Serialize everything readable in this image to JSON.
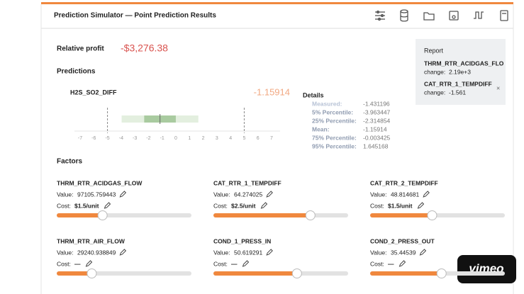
{
  "header": {
    "title": "Prediction Simulator — Point Prediction Results"
  },
  "relative_profit": {
    "label": "Relative profit",
    "value": "-$3,276.38"
  },
  "predictions": {
    "title": "Predictions",
    "target": "H2S_SO2_DIFF",
    "value": "-1.15914",
    "axis_ticks": [
      -7,
      -6,
      -5,
      -4,
      -3,
      -2,
      -1,
      0,
      1,
      2,
      3,
      4,
      5,
      6,
      7
    ],
    "limits": [
      -5,
      5
    ],
    "details": {
      "title": "Details",
      "rows": [
        {
          "label": "Measured:",
          "value": -1.431196
        },
        {
          "label": "5% Percentile:",
          "value": -3.963447
        },
        {
          "label": "25% Percentile:",
          "value": -2.314854
        },
        {
          "label": "Mean:",
          "value": -1.15914
        },
        {
          "label": "75% Percentile:",
          "value": -0.003425
        },
        {
          "label": "95% Percentile:",
          "value": 1.645168
        }
      ]
    }
  },
  "report": {
    "title": "Report",
    "close": "×",
    "items": [
      {
        "name": "THRM_RTR_ACIDGAS_FLO",
        "change_label": "change:",
        "change": "2.19e+3"
      },
      {
        "name": "CAT_RTR_1_TEMPDIFF",
        "change_label": "change:",
        "change": "-1.561"
      }
    ]
  },
  "factors": {
    "title": "Factors",
    "items": [
      {
        "name": "THRM_RTR_ACIDGAS_FLOW",
        "value_label": "Value:",
        "value": "97105.759443",
        "cost_label": "Cost:",
        "cost": "$1.5/unit",
        "slider": 0.34
      },
      {
        "name": "CAT_RTR_1_TEMPDIFF",
        "value_label": "Value:",
        "value": "64.274025",
        "cost_label": "Cost:",
        "cost": "$2.5/unit",
        "slider": 0.72
      },
      {
        "name": "CAT_RTR_2_TEMPDIFF",
        "value_label": "Value:",
        "value": "48.814681",
        "cost_label": "Cost:",
        "cost": "$1.5/unit",
        "slider": 0.46
      },
      {
        "name": "THRM_RTR_AIR_FLOW",
        "value_label": "Value:",
        "value": "29240.938849",
        "cost_label": "Cost:",
        "cost": "—",
        "slider": 0.26
      },
      {
        "name": "COND_1_PRESS_IN",
        "value_label": "Value:",
        "value": "50.619291",
        "cost_label": "Cost:",
        "cost": "—",
        "slider": 0.62
      },
      {
        "name": "COND_2_PRESS_OUT",
        "value_label": "Value:",
        "value": "35.44539",
        "cost_label": "Cost:",
        "cost": "—",
        "slider": 0.53
      }
    ]
  },
  "watermark": "vimeo"
}
